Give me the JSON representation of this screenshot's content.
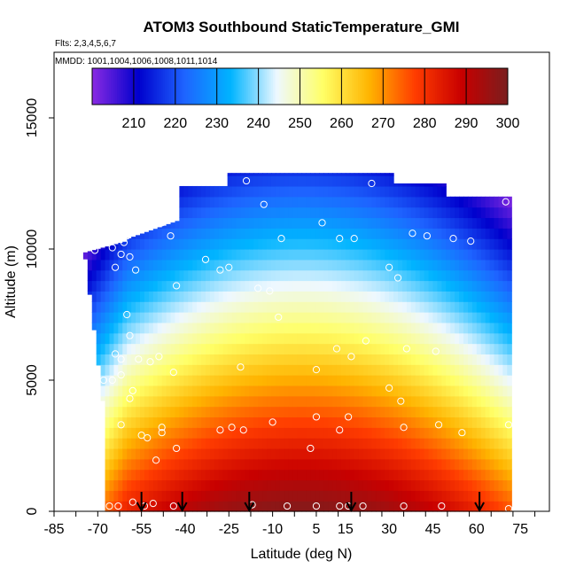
{
  "chart_data": {
    "type": "heatmap",
    "title": "ATOM3 Southbound StaticTemperature_GMI",
    "subtitle_flights": "Flts: 2,3,4,5,6,7",
    "subtitle_dates": "MMDD: 1001,1004,1006,1008,1011,1014",
    "xlabel": "Latitude (deg N)",
    "ylabel": "Altitude (m)",
    "xlim": [
      -85,
      85
    ],
    "ylim": [
      0,
      17500
    ],
    "x_tick_values": [
      -85,
      -70,
      -55,
      -40,
      -25,
      -10,
      5,
      15,
      30,
      45,
      60,
      75
    ],
    "x_tick_labels": [
      "-85",
      "-70",
      "-55",
      "-40",
      "-25",
      "-10",
      "5",
      "15",
      "30",
      "45",
      "60",
      "75"
    ],
    "y_tick_values": [
      0,
      5000,
      10000,
      15000
    ],
    "y_tick_labels": [
      "0",
      "5000",
      "10000",
      "15000"
    ],
    "colorbar": {
      "min": 200,
      "max": 300,
      "tick_values": [
        210,
        220,
        230,
        240,
        250,
        260,
        270,
        280,
        290,
        300
      ],
      "tick_labels": [
        "210",
        "220",
        "230",
        "240",
        "250",
        "260",
        "270",
        "280",
        "290",
        "300"
      ],
      "colors": [
        "#8a2be2",
        "#0000cd",
        "#1e64ff",
        "#00b4ff",
        "#eef8ff",
        "#ffff66",
        "#ffb400",
        "#ff3c00",
        "#c80000",
        "#7a1e1e"
      ]
    },
    "flight_marker_latitudes": [
      -55,
      -41,
      -18,
      17,
      61
    ],
    "sample_points": [
      {
        "lat": -76,
        "alt": 10000
      },
      {
        "lat": -71,
        "alt": 9950
      },
      {
        "lat": -65,
        "alt": 10050
      },
      {
        "lat": -62,
        "alt": 9800
      },
      {
        "lat": -59,
        "alt": 9700
      },
      {
        "lat": -61,
        "alt": 10250
      },
      {
        "lat": -64,
        "alt": 9300
      },
      {
        "lat": -57,
        "alt": 9200
      },
      {
        "lat": -60,
        "alt": 10500
      },
      {
        "lat": -53,
        "alt": 10900
      },
      {
        "lat": -48,
        "alt": 11000
      },
      {
        "lat": -45,
        "alt": 10500
      },
      {
        "lat": -33,
        "alt": 9600
      },
      {
        "lat": -28,
        "alt": 9200
      },
      {
        "lat": -25,
        "alt": 9300
      },
      {
        "lat": -43,
        "alt": 8600
      },
      {
        "lat": -19,
        "alt": 12600
      },
      {
        "lat": 24,
        "alt": 12500
      },
      {
        "lat": -13,
        "alt": 11700
      },
      {
        "lat": -7,
        "alt": 10400
      },
      {
        "lat": 7,
        "alt": 11000
      },
      {
        "lat": 13,
        "alt": 10400
      },
      {
        "lat": 18,
        "alt": 10400
      },
      {
        "lat": 38,
        "alt": 10600
      },
      {
        "lat": 43,
        "alt": 10500
      },
      {
        "lat": 52,
        "alt": 10400
      },
      {
        "lat": 58,
        "alt": 10300
      },
      {
        "lat": 70,
        "alt": 11800
      },
      {
        "lat": 30,
        "alt": 9300
      },
      {
        "lat": 33,
        "alt": 8900
      },
      {
        "lat": -15,
        "alt": 8500
      },
      {
        "lat": -11,
        "alt": 8400
      },
      {
        "lat": -8,
        "alt": 7400
      },
      {
        "lat": -60,
        "alt": 7500
      },
      {
        "lat": -59,
        "alt": 6700
      },
      {
        "lat": -64,
        "alt": 6000
      },
      {
        "lat": -62,
        "alt": 5800
      },
      {
        "lat": -68,
        "alt": 5000
      },
      {
        "lat": -65,
        "alt": 5000
      },
      {
        "lat": -62,
        "alt": 5200
      },
      {
        "lat": -56,
        "alt": 5800
      },
      {
        "lat": -52,
        "alt": 5700
      },
      {
        "lat": -49,
        "alt": 5900
      },
      {
        "lat": -58,
        "alt": 4600
      },
      {
        "lat": -59,
        "alt": 4300
      },
      {
        "lat": -44,
        "alt": 5300
      },
      {
        "lat": -21,
        "alt": 5500
      },
      {
        "lat": 5,
        "alt": 5400
      },
      {
        "lat": 12,
        "alt": 6200
      },
      {
        "lat": 17,
        "alt": 5900
      },
      {
        "lat": 22,
        "alt": 6500
      },
      {
        "lat": 36,
        "alt": 6200
      },
      {
        "lat": 46,
        "alt": 6100
      },
      {
        "lat": 30,
        "alt": 4700
      },
      {
        "lat": 34,
        "alt": 4200
      },
      {
        "lat": -62,
        "alt": 3300
      },
      {
        "lat": -55,
        "alt": 2900
      },
      {
        "lat": -53,
        "alt": 2800
      },
      {
        "lat": -48,
        "alt": 3000
      },
      {
        "lat": -48,
        "alt": 3200
      },
      {
        "lat": -50,
        "alt": 1950
      },
      {
        "lat": -43,
        "alt": 2400
      },
      {
        "lat": -28,
        "alt": 3100
      },
      {
        "lat": -24,
        "alt": 3200
      },
      {
        "lat": -20,
        "alt": 3100
      },
      {
        "lat": -10,
        "alt": 3400
      },
      {
        "lat": 5,
        "alt": 3600
      },
      {
        "lat": 16,
        "alt": 3600
      },
      {
        "lat": 13,
        "alt": 3100
      },
      {
        "lat": 3,
        "alt": 2400
      },
      {
        "lat": 35,
        "alt": 3200
      },
      {
        "lat": 47,
        "alt": 3300
      },
      {
        "lat": 55,
        "alt": 3000
      },
      {
        "lat": 71,
        "alt": 3300
      },
      {
        "lat": -66,
        "alt": 200
      },
      {
        "lat": -63,
        "alt": 200
      },
      {
        "lat": -58,
        "alt": 350
      },
      {
        "lat": -54,
        "alt": 200
      },
      {
        "lat": -51,
        "alt": 300
      },
      {
        "lat": -44,
        "alt": 200
      },
      {
        "lat": -17,
        "alt": 250
      },
      {
        "lat": -5,
        "alt": 200
      },
      {
        "lat": 5,
        "alt": 200
      },
      {
        "lat": 13,
        "alt": 200
      },
      {
        "lat": 16,
        "alt": 200
      },
      {
        "lat": 21,
        "alt": 200
      },
      {
        "lat": 35,
        "alt": 200
      },
      {
        "lat": 48,
        "alt": 200
      },
      {
        "lat": 71,
        "alt": 100
      }
    ]
  }
}
